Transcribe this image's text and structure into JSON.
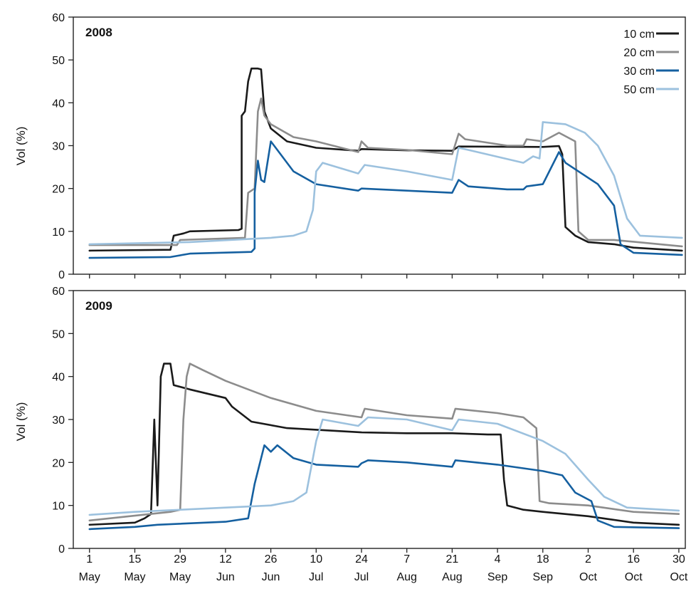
{
  "figure": {
    "ylabel": "Vol (%)",
    "x_ticks": [
      {
        "day": "1",
        "month": "May"
      },
      {
        "day": "15",
        "month": "May"
      },
      {
        "day": "29",
        "month": "May"
      },
      {
        "day": "12",
        "month": "Jun"
      },
      {
        "day": "26",
        "month": "Jun"
      },
      {
        "day": "10",
        "month": "Jul"
      },
      {
        "day": "24",
        "month": "Jul"
      },
      {
        "day": "7",
        "month": "Aug"
      },
      {
        "day": "21",
        "month": "Aug"
      },
      {
        "day": "4",
        "month": "Sep"
      },
      {
        "day": "18",
        "month": "Sep"
      },
      {
        "day": "2",
        "month": "Oct"
      },
      {
        "day": "16",
        "month": "Oct"
      },
      {
        "day": "30",
        "month": "Oct"
      }
    ],
    "legend": [
      "10 cm",
      "20 cm",
      "30 cm",
      "50 cm"
    ],
    "colors": {
      "10 cm": "#1a1a1a",
      "20 cm": "#8c8c8c",
      "30 cm": "#1560a0",
      "50 cm": "#9cc1de"
    }
  },
  "chart_data": [
    {
      "type": "line",
      "title": "2008",
      "ylabel": "Vol (%)",
      "ylim": [
        0,
        60
      ],
      "yticks": [
        0,
        10,
        20,
        30,
        40,
        50,
        60
      ],
      "x_unit": "date",
      "xlim": [
        "May 1",
        "Oct 31"
      ],
      "legend_position": "top-right",
      "series": [
        {
          "name": "10 cm",
          "points": [
            [
              "May 1",
              5.5
            ],
            [
              "May 26",
              5.7
            ],
            [
              "May 27",
              9
            ],
            [
              "May 30",
              9.5
            ],
            [
              "Jun 1",
              10
            ],
            [
              "Jun 16",
              10.3
            ],
            [
              "Jun 17",
              10.6
            ],
            [
              "Jun 17",
              37
            ],
            [
              "Jun 18",
              38
            ],
            [
              "Jun 19",
              45
            ],
            [
              "Jun 20",
              48
            ],
            [
              "Jun 22",
              48
            ],
            [
              "Jun 23",
              47.8
            ],
            [
              "Jun 24",
              38
            ],
            [
              "Jun 26",
              34
            ],
            [
              "Jul 1",
              31
            ],
            [
              "Jul 10",
              29.5
            ],
            [
              "Jul 23",
              28.8
            ],
            [
              "Jul 24",
              29.2
            ],
            [
              "Aug 7",
              28.9
            ],
            [
              "Aug 21",
              28.8
            ],
            [
              "Aug 23",
              29.8
            ],
            [
              "Sep 18",
              29.7
            ],
            [
              "Sep 23",
              29.9
            ],
            [
              "Sep 24",
              28
            ],
            [
              "Sep 25",
              11
            ],
            [
              "Sep 28",
              9
            ],
            [
              "Oct 2",
              7.5
            ],
            [
              "Oct 10",
              7
            ],
            [
              "Oct 16",
              6.2
            ],
            [
              "Oct 31",
              5.5
            ]
          ]
        },
        {
          "name": "20 cm",
          "points": [
            [
              "May 1",
              6.8
            ],
            [
              "May 28",
              6.8
            ],
            [
              "May 29",
              8
            ],
            [
              "Jun 18",
              8.5
            ],
            [
              "Jun 19",
              19
            ],
            [
              "Jun 21",
              20
            ],
            [
              "Jun 22",
              38
            ],
            [
              "Jun 23",
              41
            ],
            [
              "Jun 24",
              37
            ],
            [
              "Jun 26",
              35
            ],
            [
              "Jul 3",
              32
            ],
            [
              "Jul 10",
              31
            ],
            [
              "Jul 23",
              28.5
            ],
            [
              "Jul 24",
              31
            ],
            [
              "Jul 26",
              29.5
            ],
            [
              "Aug 7",
              29
            ],
            [
              "Aug 21",
              28
            ],
            [
              "Aug 23",
              32.8
            ],
            [
              "Aug 25",
              31.5
            ],
            [
              "Sep 7",
              30
            ],
            [
              "Sep 12",
              30
            ],
            [
              "Sep 13",
              31.5
            ],
            [
              "Sep 18",
              31
            ],
            [
              "Sep 23",
              33
            ],
            [
              "Sep 28",
              31
            ],
            [
              "Sep 29",
              10
            ],
            [
              "Oct 2",
              8
            ],
            [
              "Oct 10",
              8
            ],
            [
              "Oct 31",
              6.5
            ]
          ]
        },
        {
          "name": "30 cm",
          "points": [
            [
              "May 1",
              3.8
            ],
            [
              "May 26",
              4
            ],
            [
              "Jun 1",
              4.8
            ],
            [
              "Jun 20",
              5.2
            ],
            [
              "Jun 21",
              6
            ],
            [
              "Jun 21",
              19
            ],
            [
              "Jun 22",
              26.5
            ],
            [
              "Jun 23",
              22
            ],
            [
              "Jun 24",
              21.5
            ],
            [
              "Jun 26",
              31
            ],
            [
              "Jun 28",
              29
            ],
            [
              "Jul 3",
              24
            ],
            [
              "Jul 10",
              21
            ],
            [
              "Jul 23",
              19.5
            ],
            [
              "Jul 24",
              20
            ],
            [
              "Aug 7",
              19.5
            ],
            [
              "Aug 21",
              19
            ],
            [
              "Aug 23",
              22
            ],
            [
              "Aug 26",
              20.5
            ],
            [
              "Sep 7",
              19.8
            ],
            [
              "Sep 12",
              19.8
            ],
            [
              "Sep 13",
              20.5
            ],
            [
              "Sep 18",
              21
            ],
            [
              "Sep 23",
              28.5
            ],
            [
              "Sep 25",
              26
            ],
            [
              "Oct 5",
              21
            ],
            [
              "Oct 10",
              16
            ],
            [
              "Oct 12",
              7
            ],
            [
              "Oct 16",
              5
            ],
            [
              "Oct 31",
              4.5
            ]
          ]
        },
        {
          "name": "50 cm",
          "points": [
            [
              "May 1",
              7
            ],
            [
              "Jun 1",
              7.5
            ],
            [
              "Jun 26",
              8.5
            ],
            [
              "Jul 3",
              9
            ],
            [
              "Jul 7",
              10
            ],
            [
              "Jul 9",
              15
            ],
            [
              "Jul 10",
              24
            ],
            [
              "Jul 12",
              26
            ],
            [
              "Jul 23",
              23.5
            ],
            [
              "Jul 25",
              25.5
            ],
            [
              "Aug 7",
              24
            ],
            [
              "Aug 21",
              22
            ],
            [
              "Aug 23",
              29.5
            ],
            [
              "Aug 26",
              29
            ],
            [
              "Sep 12",
              26
            ],
            [
              "Sep 15",
              27.5
            ],
            [
              "Sep 17",
              27
            ],
            [
              "Sep 18",
              35.5
            ],
            [
              "Sep 25",
              35
            ],
            [
              "Oct 1",
              33
            ],
            [
              "Oct 5",
              30
            ],
            [
              "Oct 10",
              23
            ],
            [
              "Oct 14",
              13
            ],
            [
              "Oct 18",
              9
            ],
            [
              "Oct 31",
              8.5
            ]
          ]
        }
      ]
    },
    {
      "type": "line",
      "title": "2009",
      "ylabel": "Vol (%)",
      "ylim": [
        0,
        60
      ],
      "yticks": [
        0,
        10,
        20,
        30,
        40,
        50,
        60
      ],
      "x_unit": "date",
      "xlim": [
        "May 1",
        "Oct 31"
      ],
      "series": [
        {
          "name": "10 cm",
          "points": [
            [
              "May 1",
              5.5
            ],
            [
              "May 15",
              6
            ],
            [
              "May 18",
              7
            ],
            [
              "May 20",
              8
            ],
            [
              "May 21",
              30
            ],
            [
              "May 22",
              10
            ],
            [
              "May 23",
              40
            ],
            [
              "May 24",
              43
            ],
            [
              "May 26",
              43
            ],
            [
              "May 27",
              38
            ],
            [
              "Jun 1",
              37
            ],
            [
              "Jun 12",
              35
            ],
            [
              "Jun 14",
              33
            ],
            [
              "Jun 20",
              29.5
            ],
            [
              "Jul 1",
              28
            ],
            [
              "Jul 24",
              27
            ],
            [
              "Aug 7",
              26.8
            ],
            [
              "Aug 21",
              26.8
            ],
            [
              "Sep 1",
              26.5
            ],
            [
              "Sep 5",
              26.5
            ],
            [
              "Sep 6",
              16
            ],
            [
              "Sep 7",
              10
            ],
            [
              "Sep 12",
              9
            ],
            [
              "Sep 18",
              8.5
            ],
            [
              "Oct 2",
              7.5
            ],
            [
              "Oct 16",
              6
            ],
            [
              "Oct 30",
              5.5
            ]
          ]
        },
        {
          "name": "20 cm",
          "points": [
            [
              "May 1",
              6.5
            ],
            [
              "May 26",
              8.5
            ],
            [
              "May 29",
              9
            ],
            [
              "May 30",
              30
            ],
            [
              "May 31",
              40
            ],
            [
              "Jun 1",
              43
            ],
            [
              "Jun 5",
              41.5
            ],
            [
              "Jun 12",
              39
            ],
            [
              "Jun 26",
              35
            ],
            [
              "Jul 10",
              32
            ],
            [
              "Jul 24",
              30.5
            ],
            [
              "Jul 25",
              32.5
            ],
            [
              "Aug 7",
              31
            ],
            [
              "Aug 21",
              30.2
            ],
            [
              "Aug 22",
              32.5
            ],
            [
              "Sep 4",
              31.5
            ],
            [
              "Sep 12",
              30.5
            ],
            [
              "Sep 16",
              28
            ],
            [
              "Sep 17",
              11
            ],
            [
              "Sep 20",
              10.5
            ],
            [
              "Oct 2",
              10
            ],
            [
              "Oct 16",
              8.5
            ],
            [
              "Oct 30",
              8
            ]
          ]
        },
        {
          "name": "30 cm",
          "points": [
            [
              "May 1",
              4.5
            ],
            [
              "May 15",
              5
            ],
            [
              "May 22",
              5.5
            ],
            [
              "Jun 12",
              6.2
            ],
            [
              "Jun 19",
              7
            ],
            [
              "Jun 21",
              15
            ],
            [
              "Jun 24",
              24
            ],
            [
              "Jun 26",
              22.5
            ],
            [
              "Jun 28",
              24
            ],
            [
              "Jul 3",
              21
            ],
            [
              "Jul 10",
              19.5
            ],
            [
              "Jul 23",
              19
            ],
            [
              "Jul 24",
              19.8
            ],
            [
              "Jul 26",
              20.5
            ],
            [
              "Aug 7",
              20
            ],
            [
              "Aug 21",
              19
            ],
            [
              "Aug 22",
              20.5
            ],
            [
              "Sep 4",
              19.5
            ],
            [
              "Sep 18",
              18
            ],
            [
              "Sep 24",
              17
            ],
            [
              "Sep 28",
              13
            ],
            [
              "Oct 3",
              11
            ],
            [
              "Oct 5",
              6.5
            ],
            [
              "Oct 10",
              5
            ],
            [
              "Oct 30",
              4.7
            ]
          ]
        },
        {
          "name": "50 cm",
          "points": [
            [
              "May 1",
              7.8
            ],
            [
              "May 15",
              8.5
            ],
            [
              "Jun 12",
              9.5
            ],
            [
              "Jun 26",
              10
            ],
            [
              "Jul 3",
              11
            ],
            [
              "Jul 7",
              13
            ],
            [
              "Jul 10",
              25
            ],
            [
              "Jul 12",
              30
            ],
            [
              "Jul 23",
              28.5
            ],
            [
              "Jul 26",
              30.5
            ],
            [
              "Aug 7",
              30
            ],
            [
              "Aug 21",
              27.5
            ],
            [
              "Aug 23",
              30
            ],
            [
              "Sep 4",
              29
            ],
            [
              "Sep 18",
              25
            ],
            [
              "Sep 25",
              22
            ],
            [
              "Oct 2",
              16
            ],
            [
              "Oct 7",
              12
            ],
            [
              "Oct 14",
              9.5
            ],
            [
              "Oct 30",
              8.8
            ]
          ]
        }
      ]
    }
  ]
}
